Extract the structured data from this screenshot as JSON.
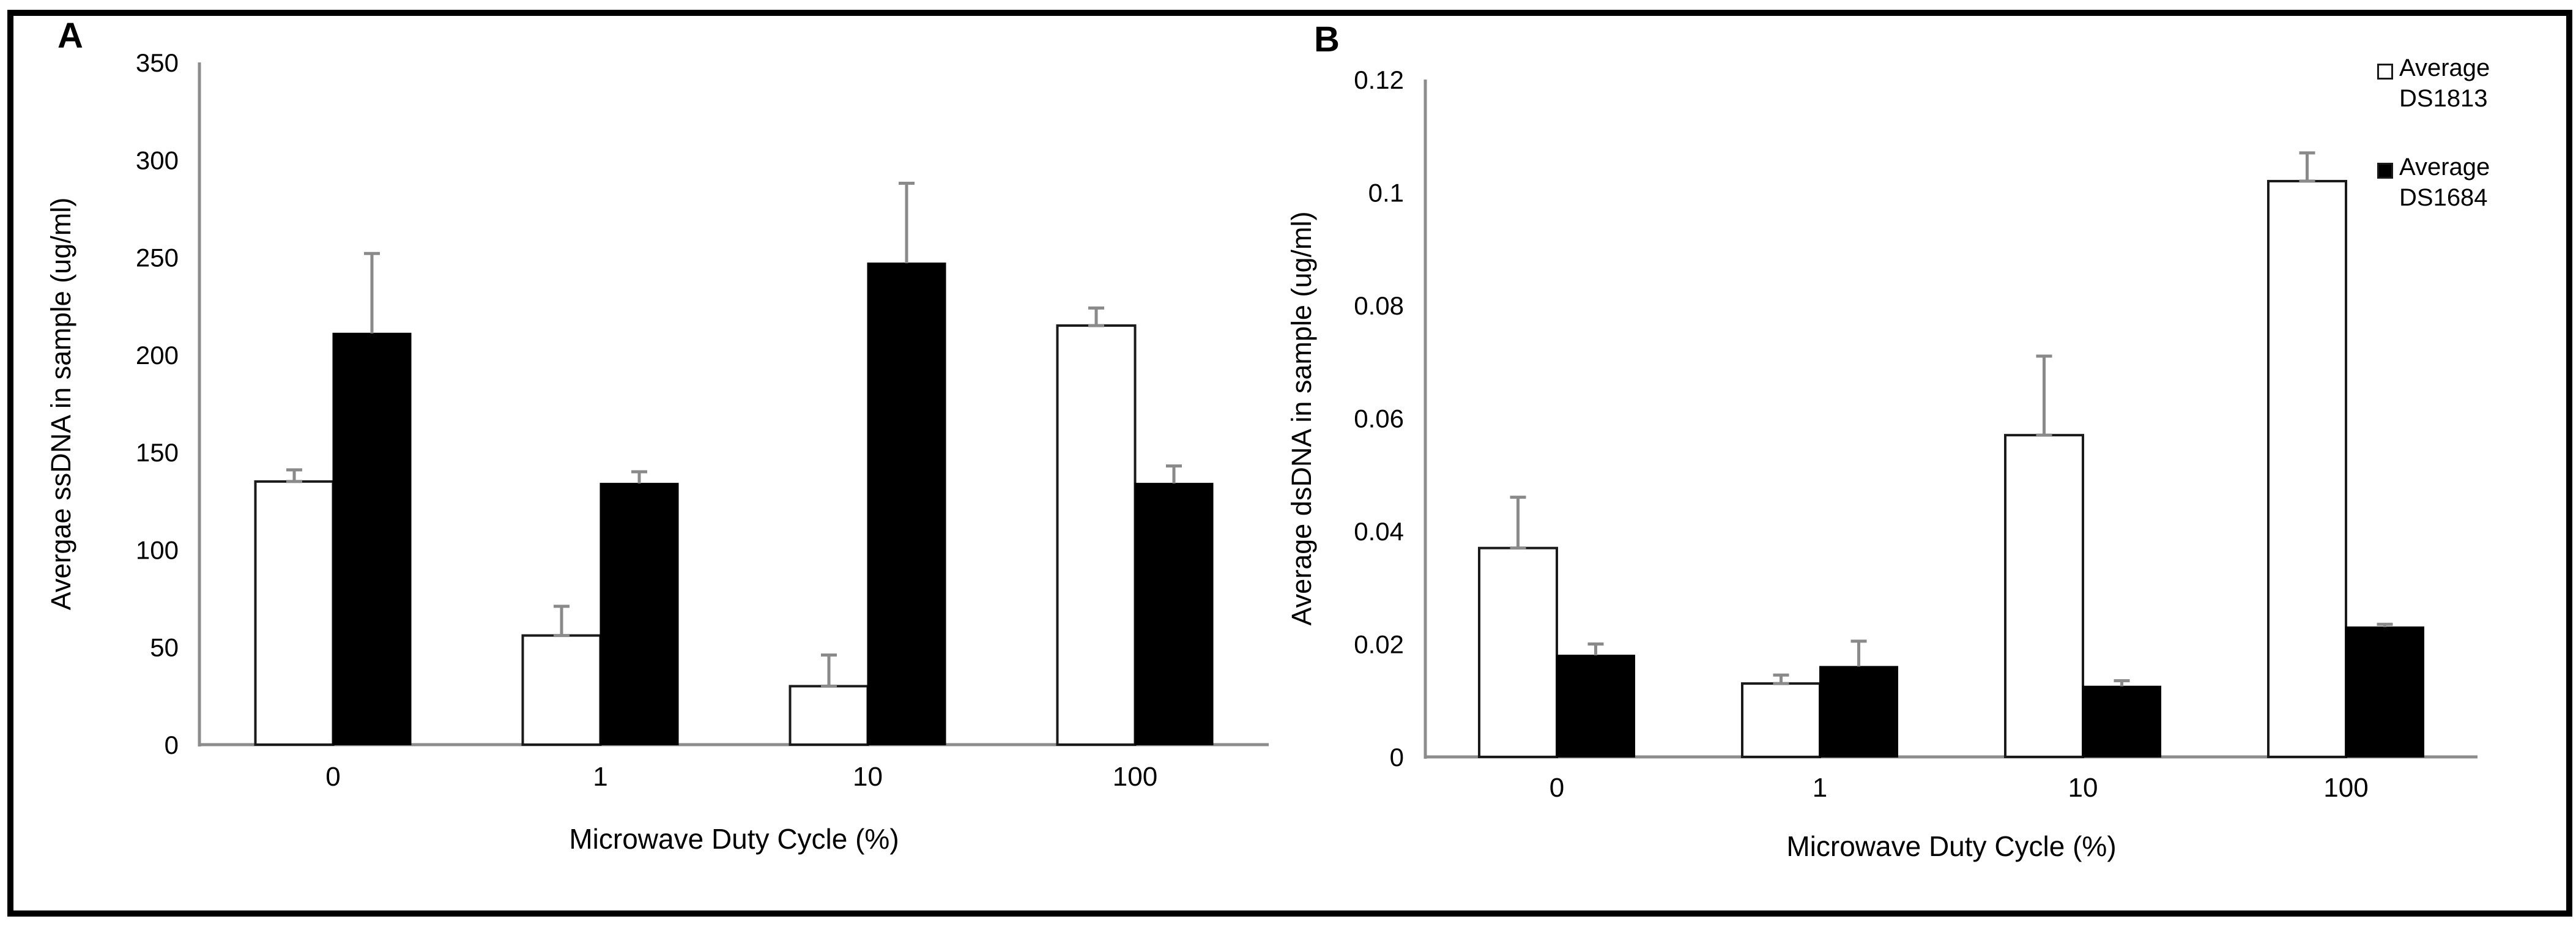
{
  "figure": {
    "background": "#ffffff",
    "frame_color": "#000000"
  },
  "style": {
    "axis_color": "#8c8c8c",
    "error_bar_color": "#8a8a8a",
    "bar_outline_color": "#1a1a1a",
    "text_color": "#000000"
  },
  "legend": {
    "position": "top-right",
    "items": [
      {
        "line1": "Average",
        "line2": "DS1813",
        "swatch_color": "#ffffff"
      },
      {
        "line1": "Average",
        "line2": "DS1684",
        "swatch_color": "#000000"
      }
    ]
  },
  "chart_data": [
    {
      "panel": "A",
      "type": "bar",
      "categories": [
        "0",
        "1",
        "10",
        "100"
      ],
      "series": [
        {
          "name": "Average DS1813",
          "fill": "#ffffff",
          "values": [
            135,
            56,
            30,
            215
          ],
          "errors_plus": [
            6,
            15,
            16,
            9
          ]
        },
        {
          "name": "Average DS1684",
          "fill": "#000000",
          "values": [
            211,
            134,
            247,
            134
          ],
          "errors_plus": [
            41,
            6,
            41,
            9
          ]
        }
      ],
      "xlabel": "Microwave Duty Cycle (%)",
      "ylabel": "Avergae ssDNA in sample (ug/ml)",
      "ylim": [
        0,
        350
      ],
      "yticks": [
        0,
        50,
        100,
        150,
        200,
        250,
        300,
        350
      ],
      "ytick_labels": [
        "0",
        "50",
        "100",
        "150",
        "200",
        "250",
        "300",
        "350"
      ],
      "grid": false,
      "legend_position": "none"
    },
    {
      "panel": "B",
      "type": "bar",
      "categories": [
        "0",
        "1",
        "10",
        "100"
      ],
      "series": [
        {
          "name": "Average DS1813",
          "fill": "#ffffff",
          "values": [
            0.037,
            0.013,
            0.057,
            0.102
          ],
          "errors_plus": [
            0.009,
            0.0015,
            0.014,
            0.005
          ]
        },
        {
          "name": "Average DS1684",
          "fill": "#000000",
          "values": [
            0.018,
            0.016,
            0.0125,
            0.023
          ],
          "errors_plus": [
            0.002,
            0.0045,
            0.001,
            0.0005
          ]
        }
      ],
      "xlabel": "Microwave Duty Cycle (%)",
      "ylabel": "Average dsDNA in sample (ug/ml)",
      "ylim": [
        0,
        0.12
      ],
      "yticks": [
        0,
        0.02,
        0.04,
        0.06,
        0.08,
        0.1,
        0.12
      ],
      "ytick_labels": [
        "0",
        "0.02",
        "0.04",
        "0.06",
        "0.08",
        "0.1",
        "0.12"
      ],
      "grid": false,
      "legend_position": "top-right"
    }
  ]
}
